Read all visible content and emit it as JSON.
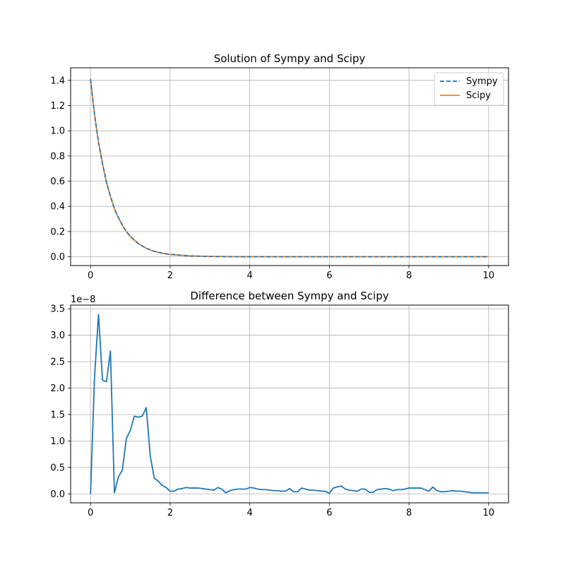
{
  "colors": {
    "sympy": "#1f77b4",
    "scipy": "#ff7f0e",
    "grid": "#b0b0b0",
    "axis": "#000000"
  },
  "chart_data": [
    {
      "type": "line",
      "title": "Solution of Sympy and Scipy",
      "xlabel": "",
      "ylabel": "",
      "xlim": [
        -0.5,
        10.5
      ],
      "ylim": [
        -0.07,
        1.5
      ],
      "x_ticks": [
        0,
        2,
        4,
        6,
        8,
        10
      ],
      "x_tick_labels": [
        "0",
        "2",
        "4",
        "6",
        "8",
        "10"
      ],
      "y_ticks": [
        0.0,
        0.2,
        0.4,
        0.6,
        0.8,
        1.0,
        1.2,
        1.4
      ],
      "y_tick_labels": [
        "0.0",
        "0.2",
        "0.4",
        "0.6",
        "0.8",
        "1.0",
        "1.2",
        "1.4"
      ],
      "grid": true,
      "legend_placement": "top-right",
      "series": [
        {
          "name": "Sympy",
          "style": "dashed",
          "color_key": "sympy",
          "x": [
            0,
            0.1,
            0.2,
            0.3,
            0.4,
            0.5,
            0.6,
            0.7,
            0.8,
            0.9,
            1.0,
            1.2,
            1.4,
            1.6,
            1.8,
            2.0,
            2.5,
            3.0,
            3.5,
            4.0,
            5.0,
            6.0,
            7.0,
            8.0,
            9.0,
            10.0
          ],
          "y": [
            1.41,
            1.13,
            0.91,
            0.74,
            0.59,
            0.48,
            0.38,
            0.31,
            0.25,
            0.2,
            0.16,
            0.104,
            0.067,
            0.043,
            0.028,
            0.018,
            0.0065,
            0.0024,
            0.0009,
            0.0003,
            0.0,
            0.0,
            0.0,
            0.0,
            0.0,
            0.0
          ]
        },
        {
          "name": "Scipy",
          "style": "solid",
          "color_key": "scipy",
          "x": [
            0,
            0.1,
            0.2,
            0.3,
            0.4,
            0.5,
            0.6,
            0.7,
            0.8,
            0.9,
            1.0,
            1.2,
            1.4,
            1.6,
            1.8,
            2.0,
            2.5,
            3.0,
            3.5,
            4.0,
            5.0,
            6.0,
            7.0,
            8.0,
            9.0,
            10.0
          ],
          "y": [
            1.41,
            1.13,
            0.91,
            0.74,
            0.59,
            0.48,
            0.38,
            0.31,
            0.25,
            0.2,
            0.16,
            0.104,
            0.067,
            0.043,
            0.028,
            0.018,
            0.0065,
            0.0024,
            0.0009,
            0.0003,
            0.0,
            0.0,
            0.0,
            0.0,
            0.0,
            0.0
          ]
        }
      ]
    },
    {
      "type": "line",
      "title": "Difference between Sympy and Scipy",
      "xlabel": "",
      "ylabel": "",
      "y_offset_label": "1e−8",
      "xlim": [
        -0.5,
        10.5
      ],
      "ylim": [
        -0.17,
        3.57
      ],
      "x_ticks": [
        0,
        2,
        4,
        6,
        8,
        10
      ],
      "x_tick_labels": [
        "0",
        "2",
        "4",
        "6",
        "8",
        "10"
      ],
      "y_ticks": [
        0.0,
        0.5,
        1.0,
        1.5,
        2.0,
        2.5,
        3.0,
        3.5
      ],
      "y_tick_labels": [
        "0.0",
        "0.5",
        "1.0",
        "1.5",
        "2.0",
        "2.5",
        "3.0",
        "3.5"
      ],
      "grid": true,
      "series": [
        {
          "color_key": "sympy",
          "style": "solid",
          "x": [
            0,
            0.1,
            0.2,
            0.3,
            0.4,
            0.5,
            0.6,
            0.7,
            0.8,
            0.9,
            1.0,
            1.1,
            1.2,
            1.3,
            1.4,
            1.5,
            1.6,
            1.7,
            1.8,
            1.9,
            2.0,
            2.1,
            2.2,
            2.3,
            2.4,
            2.5,
            2.6,
            2.7,
            2.8,
            2.9,
            3.0,
            3.1,
            3.2,
            3.3,
            3.4,
            3.5,
            3.6,
            3.7,
            3.8,
            3.9,
            4.0,
            4.1,
            4.2,
            4.3,
            4.4,
            4.5,
            4.6,
            4.7,
            4.8,
            4.9,
            5.0,
            5.1,
            5.2,
            5.3,
            5.4,
            5.5,
            5.6,
            5.7,
            5.8,
            5.9,
            6.0,
            6.1,
            6.2,
            6.3,
            6.4,
            6.5,
            6.6,
            6.7,
            6.8,
            6.9,
            7.0,
            7.1,
            7.2,
            7.3,
            7.4,
            7.5,
            7.6,
            7.7,
            7.8,
            7.9,
            8.0,
            8.1,
            8.2,
            8.3,
            8.4,
            8.5,
            8.6,
            8.7,
            8.8,
            8.9,
            9.0,
            9.1,
            9.2,
            9.3,
            9.4,
            9.5,
            9.6,
            9.7,
            9.8,
            9.9,
            10.0
          ],
          "y": [
            0.0,
            2.2,
            3.39,
            2.15,
            2.12,
            2.7,
            0.02,
            0.32,
            0.45,
            1.05,
            1.2,
            1.47,
            1.45,
            1.47,
            1.63,
            0.72,
            0.3,
            0.24,
            0.16,
            0.12,
            0.05,
            0.05,
            0.09,
            0.1,
            0.12,
            0.11,
            0.11,
            0.11,
            0.1,
            0.09,
            0.08,
            0.07,
            0.12,
            0.09,
            0.02,
            0.06,
            0.08,
            0.09,
            0.09,
            0.09,
            0.12,
            0.11,
            0.09,
            0.08,
            0.08,
            0.07,
            0.06,
            0.06,
            0.05,
            0.05,
            0.1,
            0.04,
            0.04,
            0.11,
            0.09,
            0.07,
            0.07,
            0.06,
            0.05,
            0.05,
            0.01,
            0.11,
            0.13,
            0.15,
            0.09,
            0.07,
            0.06,
            0.05,
            0.09,
            0.09,
            0.03,
            0.03,
            0.08,
            0.09,
            0.1,
            0.09,
            0.06,
            0.08,
            0.08,
            0.09,
            0.11,
            0.11,
            0.11,
            0.11,
            0.08,
            0.05,
            0.13,
            0.06,
            0.04,
            0.04,
            0.05,
            0.06,
            0.05,
            0.05,
            0.04,
            0.03,
            0.02,
            0.02,
            0.02,
            0.02,
            0.02
          ]
        }
      ]
    }
  ]
}
